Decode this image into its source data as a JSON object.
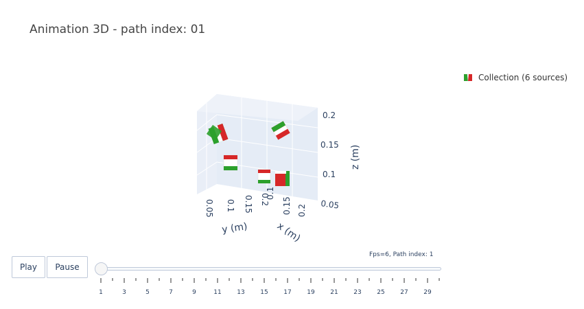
{
  "title": "Animation 3D - path index: 01",
  "legend": {
    "label": "Collection (6 sources)",
    "colors": [
      "#2ca02c",
      "#ffffff",
      "#d62728"
    ]
  },
  "chart_data": {
    "type": "scatter3d",
    "title": "Animation 3D - path index: 01",
    "axes": {
      "x": {
        "label": "x (m)",
        "ticks": [
          "0.1",
          "0.15",
          "0.2"
        ]
      },
      "y": {
        "label": "y (m)",
        "ticks": [
          "0.05",
          "0.1",
          "0.15",
          "0.2"
        ]
      },
      "z": {
        "label": "z (m)",
        "ticks": [
          "0.05",
          "0.1",
          "0.15",
          "0.2"
        ]
      }
    },
    "series": [
      {
        "name": "Collection (6 sources)",
        "marker": "magnet-cube",
        "count": 6
      }
    ]
  },
  "controls": {
    "play_label": "Play",
    "pause_label": "Pause",
    "slider_status": "Fps=6, Path index: 1",
    "slider_value": 1,
    "slider_min": 1,
    "slider_max": 30,
    "tick_labels": [
      "1",
      "3",
      "5",
      "7",
      "9",
      "11",
      "13",
      "15",
      "17",
      "19",
      "21",
      "23",
      "25",
      "27",
      "29"
    ]
  }
}
